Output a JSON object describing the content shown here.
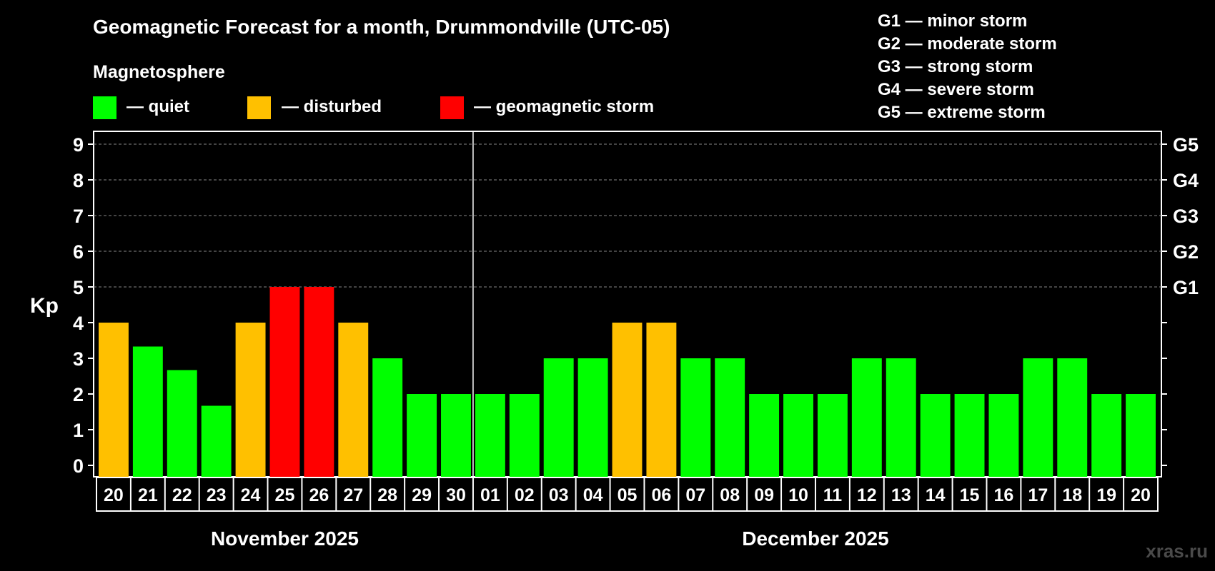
{
  "chart_data": {
    "type": "bar",
    "title": "Geomagnetic Forecast for a month, Drummondville (UTC-05)",
    "ylabel": "Kp",
    "ylim": [
      0,
      9
    ],
    "yticks": [
      "0",
      "1",
      "2",
      "3",
      "4",
      "5",
      "6",
      "7",
      "8",
      "9"
    ],
    "right_axis_labels": [
      {
        "value": 5,
        "label": "G1"
      },
      {
        "value": 6,
        "label": "G2"
      },
      {
        "value": 7,
        "label": "G3"
      },
      {
        "value": 8,
        "label": "G4"
      },
      {
        "value": 9,
        "label": "G5"
      }
    ],
    "grid": "dashed horizontal from Kp 5 to 9",
    "categories": [
      "20",
      "21",
      "22",
      "23",
      "24",
      "25",
      "26",
      "27",
      "28",
      "29",
      "30",
      "01",
      "02",
      "03",
      "04",
      "05",
      "06",
      "07",
      "08",
      "09",
      "10",
      "11",
      "12",
      "13",
      "14",
      "15",
      "16",
      "17",
      "18",
      "19",
      "20"
    ],
    "values": [
      4,
      3.33,
      2.67,
      1.67,
      4,
      5,
      5,
      4,
      3,
      2,
      2,
      2,
      2,
      3,
      3,
      4,
      4,
      3,
      3,
      2,
      2,
      2,
      3,
      3,
      2,
      2,
      2,
      3,
      3,
      2,
      2
    ],
    "levels": [
      "disturbed",
      "quiet",
      "quiet",
      "quiet",
      "disturbed",
      "storm",
      "storm",
      "disturbed",
      "quiet",
      "quiet",
      "quiet",
      "quiet",
      "quiet",
      "quiet",
      "quiet",
      "disturbed",
      "disturbed",
      "quiet",
      "quiet",
      "quiet",
      "quiet",
      "quiet",
      "quiet",
      "quiet",
      "quiet",
      "quiet",
      "quiet",
      "quiet",
      "quiet",
      "quiet",
      "quiet"
    ],
    "months": [
      {
        "label": "November 2025",
        "start": 0,
        "end": 10
      },
      {
        "label": "December 2025",
        "start": 11,
        "end": 30
      }
    ],
    "legend": {
      "heading": "Magnetosphere",
      "items": [
        {
          "key": "quiet",
          "label": "— quiet",
          "color": "#00ff00"
        },
        {
          "key": "disturbed",
          "label": "— disturbed",
          "color": "#ffc000"
        },
        {
          "key": "storm",
          "label": "— geomagnetic storm",
          "color": "#ff0000"
        }
      ]
    },
    "g_scale": [
      "G1 — minor storm",
      "G2 — moderate storm",
      "G3 — strong storm",
      "G4 — severe storm",
      "G5 — extreme storm"
    ]
  },
  "watermark": "xras.ru"
}
